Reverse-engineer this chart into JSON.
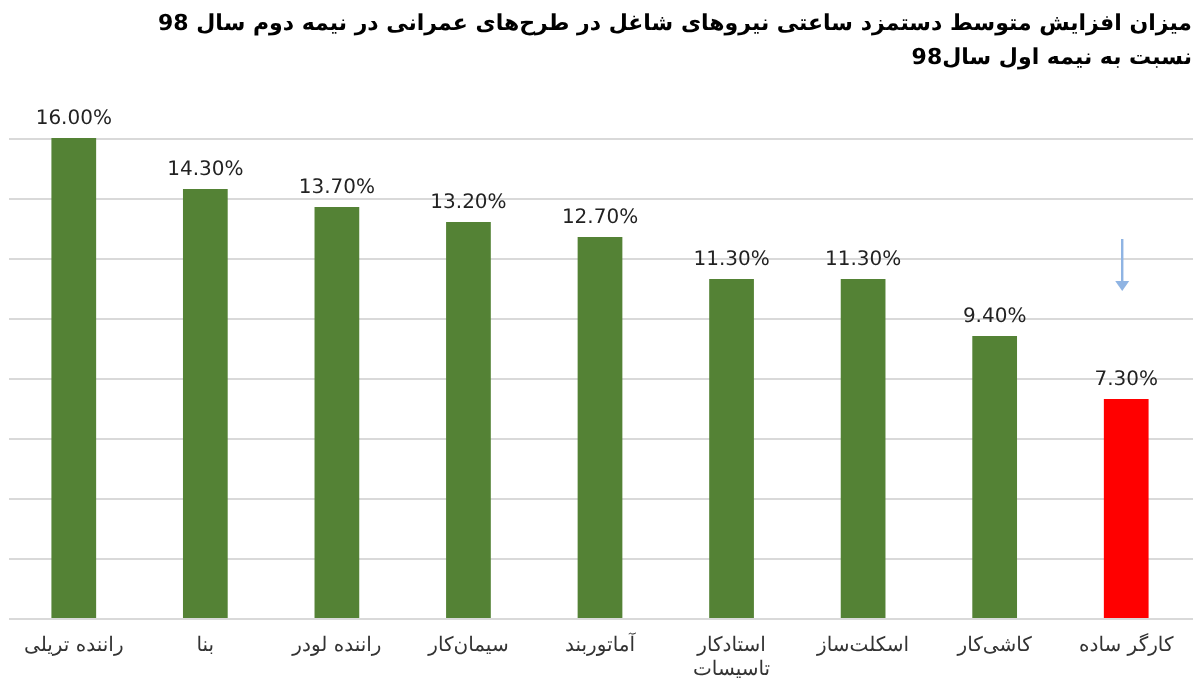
{
  "chart_data": {
    "type": "bar",
    "title": "میزان افزایش متوسط دستمزد ساعتی نیروهای شاغل در طرح‌های عمرانی در نیمه دوم سال 98",
    "subtitle": "نسبت به نیمه اول سال98",
    "categories": [
      "راننده تریلی",
      "بنا",
      "راننده لودر",
      "سیمان‌کار",
      "آماتوربند",
      "استادکار\nتاسیسات",
      "اسکلت‌ساز",
      "کاشی‌کار",
      "کارگر ساده"
    ],
    "values": [
      16,
      14.3,
      13.7,
      13.2,
      12.7,
      11.3,
      11.3,
      9.4,
      7.3
    ],
    "colors": [
      "#548235",
      "#548235",
      "#548235",
      "#548235",
      "#548235",
      "#548235",
      "#548235",
      "#548235",
      "#ff0000"
    ],
    "value_labels": [
      "16.00%",
      "14.30%",
      "13.70%",
      "13.20%",
      "12.70%",
      "11.30%",
      "11.30%",
      "9.40%",
      "7.30%"
    ],
    "ylim": [
      0,
      16
    ],
    "yticks": [
      {
        "value": 0,
        "label": null
      },
      {
        "value": 2,
        "label": null
      },
      {
        "value": 4,
        "label": null
      },
      {
        "value": 6,
        "label": null
      },
      {
        "value": 8,
        "label": null
      },
      {
        "value": 10,
        "label": null
      },
      {
        "value": 12,
        "label": null
      },
      {
        "value": 14,
        "label": null
      },
      {
        "value": 16,
        "label": null
      }
    ],
    "grid": "y",
    "tick_labels": "x"
  }
}
